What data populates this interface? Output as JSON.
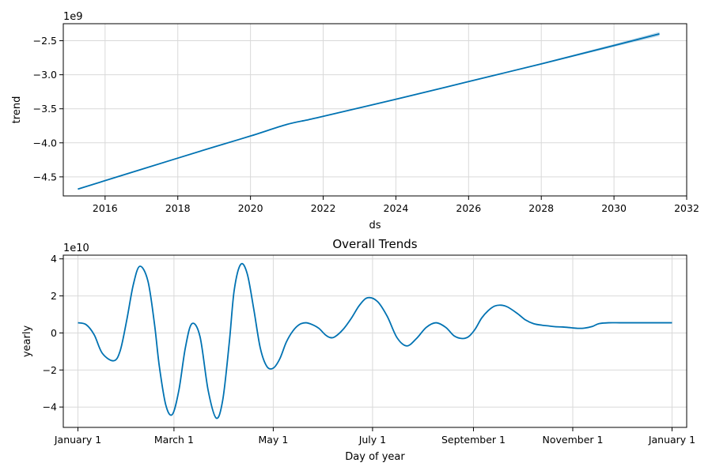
{
  "chart_data": [
    {
      "type": "line",
      "title": "",
      "xlabel": "ds",
      "ylabel": "trend",
      "y_offset_label": "1e9",
      "xlim": [
        2014.85,
        2032.0
      ],
      "ylim": [
        -4.78,
        -2.25
      ],
      "xticks": [
        2016,
        2018,
        2020,
        2022,
        2024,
        2026,
        2028,
        2030,
        2032
      ],
      "xtick_labels": [
        "2016",
        "2018",
        "2020",
        "2022",
        "2024",
        "2026",
        "2028",
        "2030",
        "2032"
      ],
      "yticks": [
        -4.5,
        -4.0,
        -3.5,
        -3.0,
        -2.5
      ],
      "ytick_labels": [
        "−4.5",
        "−4.0",
        "−3.5",
        "−3.0",
        "−2.5"
      ],
      "grid": true,
      "series": [
        {
          "color": "#0072B2",
          "x": [
            2015.25,
            2017.0,
            2019.0,
            2020.0,
            2021.0,
            2021.6,
            2022.0,
            2024.0,
            2026.0,
            2028.0,
            2030.0,
            2031.25
          ],
          "y": [
            -4.68,
            -4.39,
            -4.06,
            -3.9,
            -3.73,
            -3.66,
            -3.61,
            -3.36,
            -3.1,
            -2.84,
            -2.57,
            -2.4
          ],
          "band_upper": [
            -4.68,
            -4.39,
            -4.06,
            -3.9,
            -3.73,
            -3.66,
            -3.61,
            -3.36,
            -3.1,
            -2.83,
            -2.55,
            -2.37
          ],
          "band_lower": [
            -4.68,
            -4.39,
            -4.06,
            -3.9,
            -3.73,
            -3.66,
            -3.61,
            -3.36,
            -3.1,
            -2.85,
            -2.59,
            -2.43
          ]
        }
      ]
    },
    {
      "type": "line",
      "title": "Overall Trends",
      "xlabel": "Day of year",
      "ylabel": "yearly",
      "y_offset_label": "1e10",
      "xlim": [
        -9,
        374
      ],
      "ylim": [
        -5.1,
        4.2
      ],
      "xticks": [
        0,
        59,
        120,
        181,
        243,
        304,
        365
      ],
      "xtick_labels": [
        "January 1",
        "March 1",
        "May 1",
        "July 1",
        "September 1",
        "November 1",
        "January 1"
      ],
      "yticks": [
        -4,
        -2,
        0,
        2,
        4
      ],
      "ytick_labels": [
        "−4",
        "−2",
        "0",
        "2",
        "4"
      ],
      "grid": true,
      "series": [
        {
          "color": "#0072B2",
          "x": [
            0,
            5,
            10,
            15,
            22,
            26,
            30,
            34,
            38,
            43,
            47,
            50,
            54,
            58,
            62,
            66,
            70,
            75,
            80,
            85,
            89,
            93,
            96,
            100,
            104,
            108,
            112,
            116,
            120,
            124,
            128,
            132,
            136,
            140,
            144,
            148,
            152,
            155,
            158,
            163,
            168,
            173,
            178,
            184,
            190,
            196,
            202,
            208,
            214,
            220,
            226,
            231,
            236,
            240,
            244,
            248,
            252,
            256,
            260,
            264,
            270,
            275,
            280,
            285,
            289,
            293,
            298,
            303,
            307,
            311,
            316,
            320,
            326,
            333,
            340,
            346,
            352,
            359,
            365
          ],
          "y": [
            0.55,
            0.45,
            -0.1,
            -1.1,
            -1.5,
            -0.95,
            0.7,
            2.6,
            3.6,
            2.8,
            0.5,
            -1.8,
            -3.9,
            -4.4,
            -3.1,
            -0.8,
            0.5,
            -0.2,
            -3.1,
            -4.6,
            -3.6,
            -0.5,
            2.3,
            3.7,
            3.2,
            1.3,
            -0.8,
            -1.8,
            -1.9,
            -1.4,
            -0.5,
            0.1,
            0.45,
            0.55,
            0.45,
            0.25,
            -0.1,
            -0.25,
            -0.2,
            0.2,
            0.8,
            1.5,
            1.9,
            1.7,
            0.9,
            -0.25,
            -0.7,
            -0.3,
            0.3,
            0.55,
            0.3,
            -0.15,
            -0.3,
            -0.2,
            0.2,
            0.8,
            1.2,
            1.45,
            1.5,
            1.4,
            1.05,
            0.7,
            0.5,
            0.42,
            0.38,
            0.34,
            0.32,
            0.28,
            0.25,
            0.26,
            0.35,
            0.5,
            0.55,
            0.55,
            0.55,
            0.55,
            0.55,
            0.55,
            0.55
          ]
        }
      ]
    }
  ]
}
